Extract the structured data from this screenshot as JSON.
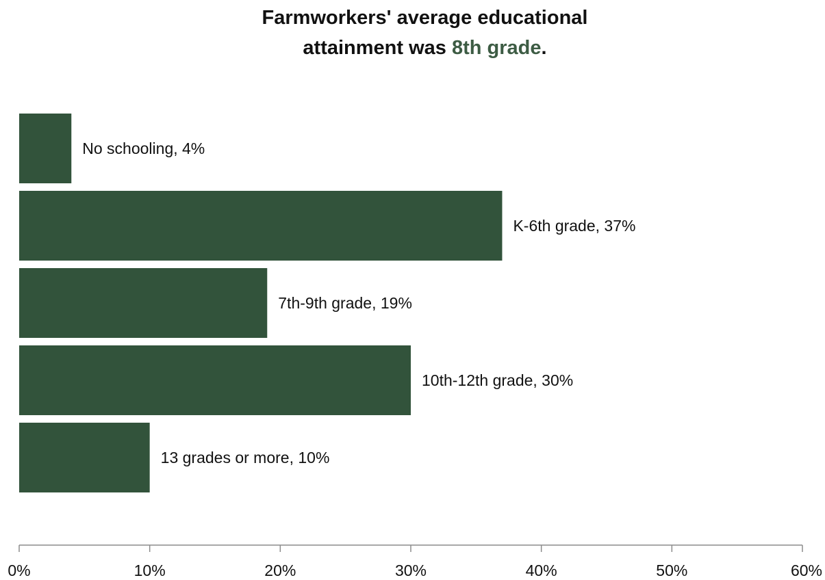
{
  "chart_data": {
    "type": "bar",
    "orientation": "horizontal",
    "title": {
      "line1": "Farmworkers' average educational",
      "line2_prefix": "attainment was",
      "line2_highlight": "8th grade",
      "line2_suffix": "."
    },
    "categories": [
      "No schooling",
      "K-6th grade",
      "7th-9th grade",
      "10th-12th grade",
      "13 grades or more"
    ],
    "values": [
      4,
      37,
      19,
      30,
      10
    ],
    "data_labels": [
      "No schooling, 4%",
      "K-6th grade, 37%",
      "7th-9th grade, 19%",
      "10th-12th grade, 30%",
      "13 grades or more, 10%"
    ],
    "xlim": [
      0,
      60
    ],
    "x_ticks": [
      0,
      10,
      20,
      30,
      40,
      50,
      60
    ],
    "x_tick_labels": [
      "0%",
      "10%",
      "20%",
      "30%",
      "40%",
      "50%",
      "60%"
    ],
    "xlabel": "",
    "ylabel": "",
    "grid": false,
    "legend": "none",
    "colors": {
      "bar": "#32533b",
      "title_highlight": "#3d5c44",
      "text": "#111111",
      "axis": "#8c8c8c"
    }
  }
}
